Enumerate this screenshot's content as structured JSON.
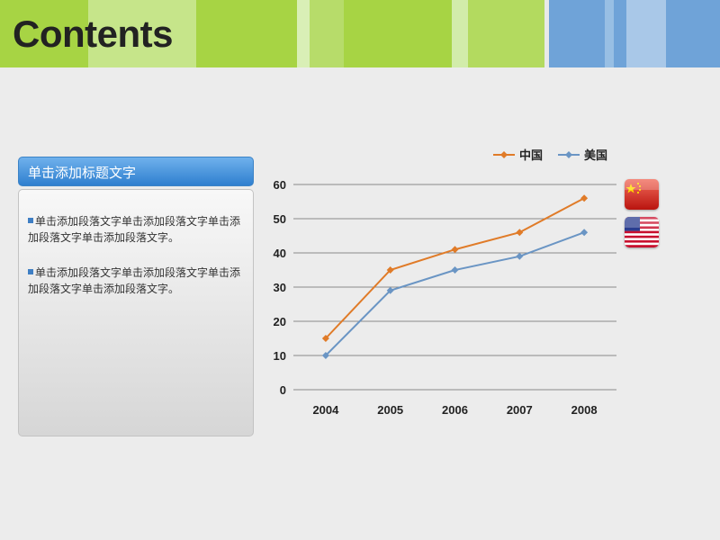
{
  "slide": {
    "title": "Contents",
    "panel": {
      "heading": "单击添加标题文字",
      "paragraphs": [
        "单击添加段落文字单击添加段落文字单击添加段落文字单击添加段落文字。",
        "单击添加段落文字单击添加段落文字单击添加段落文字单击添加段落文字。"
      ]
    },
    "colors": {
      "green_light": "#c9e78a",
      "green": "#a6d343",
      "blue_light": "#a9c8e8",
      "blue": "#6fa3d8",
      "panel_head": "#3a8ad8"
    },
    "flags": [
      "china-flag-icon",
      "usa-flag-icon"
    ]
  },
  "chart_data": {
    "type": "line",
    "categories": [
      "2004",
      "2005",
      "2006",
      "2007",
      "2008"
    ],
    "series": [
      {
        "name": "中国",
        "color": "#e07b28",
        "marker": "diamond",
        "values": [
          15,
          35,
          41,
          46,
          56
        ]
      },
      {
        "name": "美国",
        "color": "#6a95c4",
        "marker": "diamond",
        "values": [
          10,
          29,
          35,
          39,
          46
        ]
      }
    ],
    "ylim": [
      0,
      60
    ],
    "yticks": [
      0,
      10,
      20,
      30,
      40,
      50,
      60
    ],
    "grid": true,
    "legend": "top-right"
  }
}
